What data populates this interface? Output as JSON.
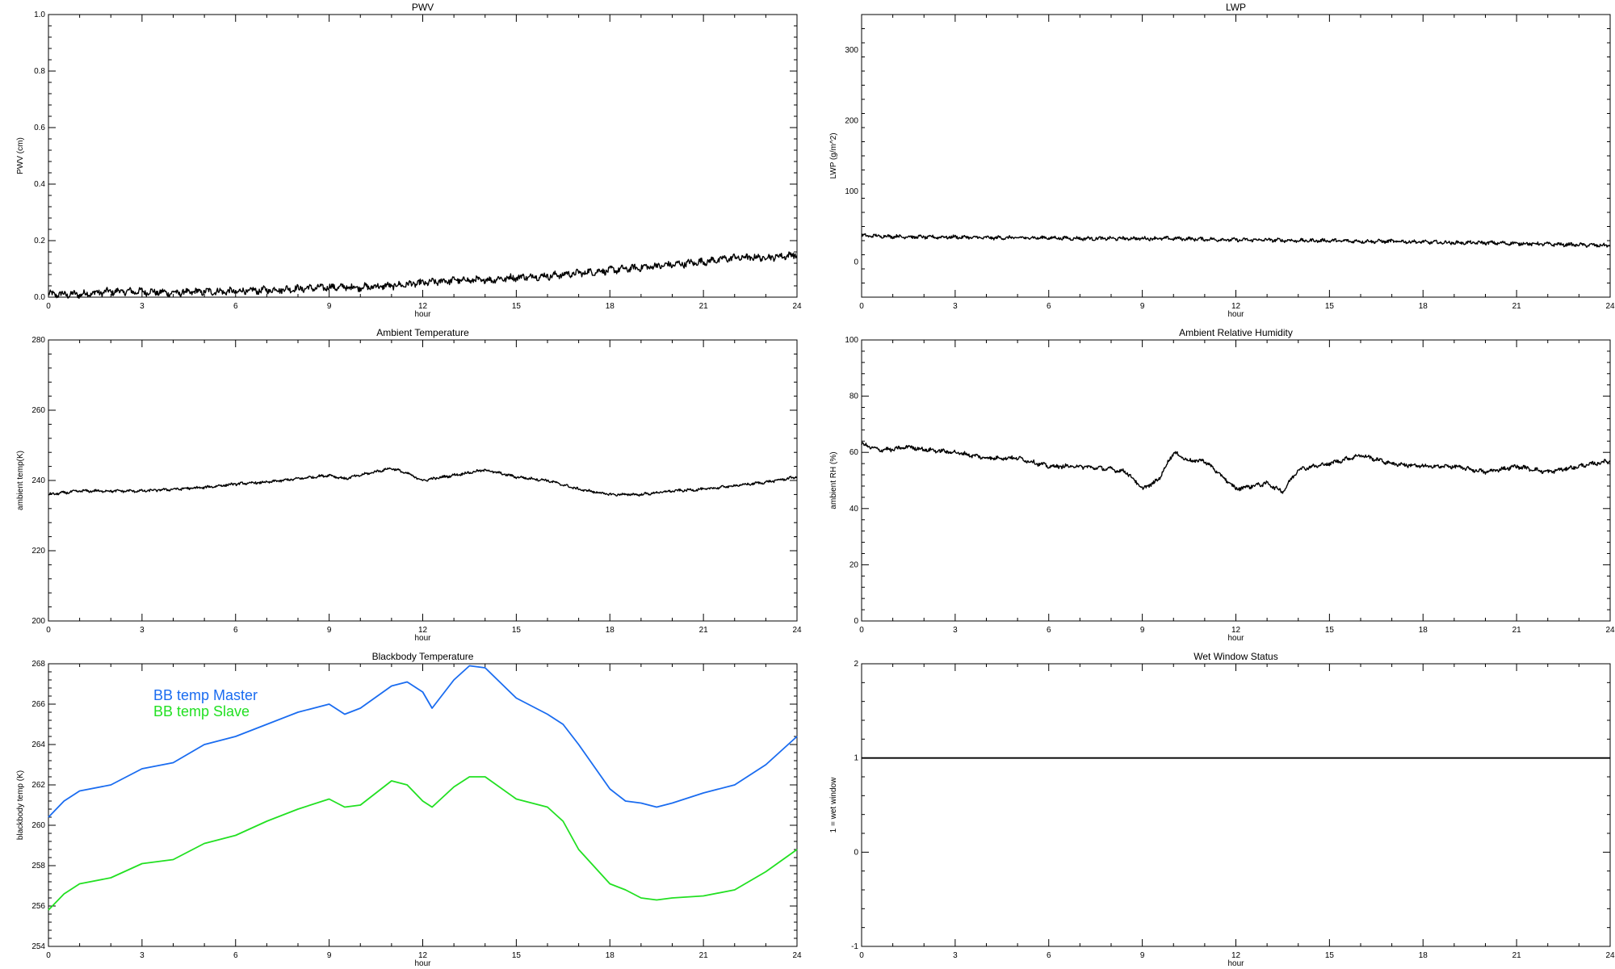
{
  "chart_data": [
    {
      "id": "pwv",
      "type": "line",
      "title": "PWV",
      "xlabel": "hour",
      "ylabel": "PWV (cm)",
      "xlim": [
        0,
        24
      ],
      "ylim": [
        0.0,
        1.0
      ],
      "xticks": [
        "0",
        "3",
        "6",
        "9",
        "12",
        "15",
        "18",
        "21",
        "24"
      ],
      "yticks": [
        "0.0",
        "0.2",
        "0.4",
        "0.6",
        "0.8",
        "1.0"
      ],
      "series": [
        {
          "color": "#000000",
          "noise": 0.01,
          "x": [
            0,
            1,
            2,
            3,
            4,
            5,
            6,
            7,
            8,
            9,
            10,
            11,
            12,
            13,
            14,
            15,
            16,
            17,
            18,
            19,
            20,
            21,
            22,
            23,
            24
          ],
          "y": [
            0.01,
            0.01,
            0.02,
            0.02,
            0.015,
            0.02,
            0.02,
            0.025,
            0.03,
            0.035,
            0.035,
            0.04,
            0.05,
            0.06,
            0.06,
            0.07,
            0.075,
            0.085,
            0.095,
            0.105,
            0.115,
            0.125,
            0.14,
            0.14,
            0.15
          ]
        }
      ]
    },
    {
      "id": "lwp",
      "type": "line",
      "title": "LWP",
      "xlabel": "hour",
      "ylabel": "LWP (g/m^2)",
      "xlim": [
        0,
        24
      ],
      "ylim": [
        -50,
        350
      ],
      "xticks": [
        "0",
        "3",
        "6",
        "9",
        "12",
        "15",
        "18",
        "21",
        "24"
      ],
      "yticks": [
        "0",
        "100",
        "200",
        "300"
      ],
      "series": [
        {
          "color": "#000000",
          "noise": 2.0,
          "x": [
            0,
            1,
            2,
            3,
            4,
            5,
            6,
            7,
            8,
            9,
            10,
            11,
            12,
            13,
            14,
            15,
            16,
            17,
            18,
            19,
            20,
            21,
            22,
            23,
            24
          ],
          "y": [
            37,
            36,
            35,
            35,
            34,
            34,
            34,
            33,
            33,
            33,
            33,
            32,
            31,
            31,
            30,
            30,
            29,
            29,
            28,
            27,
            27,
            26,
            25,
            24,
            23
          ]
        }
      ]
    },
    {
      "id": "ambient-temperature",
      "type": "line",
      "title": "Ambient Temperature",
      "xlabel": "hour",
      "ylabel": "ambient temp(K)",
      "xlim": [
        0,
        24
      ],
      "ylim": [
        200,
        280
      ],
      "xticks": [
        "0",
        "3",
        "6",
        "9",
        "12",
        "15",
        "18",
        "21",
        "24"
      ],
      "yticks": [
        "200",
        "220",
        "240",
        "260",
        "280"
      ],
      "series": [
        {
          "color": "#000000",
          "noise": 0.3,
          "x": [
            0,
            1,
            2,
            3,
            4,
            5,
            6,
            7,
            8,
            9,
            9.5,
            10,
            11,
            11.5,
            12,
            13,
            14,
            15,
            16,
            17,
            18,
            19,
            20,
            21,
            22,
            23,
            24
          ],
          "y": [
            236,
            237,
            237,
            237,
            237.5,
            238,
            239,
            239.5,
            240.5,
            241.5,
            240.5,
            241.5,
            243.5,
            242,
            240,
            241.5,
            243,
            241,
            240,
            237.5,
            236,
            236,
            237,
            237.5,
            238.5,
            239.5,
            241
          ]
        }
      ]
    },
    {
      "id": "ambient-relative-humidity",
      "type": "line",
      "title": "Ambient Relative Humidity",
      "xlabel": "hour",
      "ylabel": "ambient RH (%)",
      "xlim": [
        0,
        24
      ],
      "ylim": [
        0,
        100
      ],
      "xticks": [
        "0",
        "3",
        "6",
        "9",
        "12",
        "15",
        "18",
        "21",
        "24"
      ],
      "yticks": [
        "0",
        "20",
        "40",
        "60",
        "80",
        "100"
      ],
      "series": [
        {
          "color": "#000000",
          "noise": 0.6,
          "x": [
            0,
            0.5,
            1,
            1.5,
            2,
            3,
            4,
            5,
            6,
            7,
            8,
            8.5,
            9,
            9.5,
            10,
            10.5,
            11,
            11.5,
            12,
            13,
            13.5,
            14,
            15,
            16,
            17,
            18,
            19,
            20,
            21,
            22,
            23,
            24
          ],
          "y": [
            63,
            61,
            61,
            62,
            61,
            60,
            58,
            58,
            55,
            55,
            54,
            53,
            47,
            50,
            60,
            57,
            57,
            52,
            47,
            49,
            46,
            54,
            56,
            59,
            56,
            55,
            55,
            53,
            55,
            53,
            55,
            57
          ]
        }
      ]
    },
    {
      "id": "blackbody-temperature",
      "type": "line",
      "title": "Blackbody Temperature",
      "xlabel": "hour",
      "ylabel": "blackbody temp (K)",
      "xlim": [
        0,
        24
      ],
      "ylim": [
        254,
        268
      ],
      "xticks": [
        "0",
        "3",
        "6",
        "9",
        "12",
        "15",
        "18",
        "21",
        "24"
      ],
      "yticks": [
        "254",
        "256",
        "258",
        "260",
        "262",
        "264",
        "266",
        "268"
      ],
      "legend": [
        "BB temp Master",
        "BB temp Slave"
      ],
      "series": [
        {
          "name": "BB temp Master",
          "color": "#1a6cf0",
          "noise": 0,
          "x": [
            0,
            0.5,
            1,
            2,
            3,
            4,
            5,
            6,
            7,
            8,
            9,
            9.5,
            10,
            11,
            11.5,
            12,
            12.3,
            13,
            13.5,
            14,
            15,
            16,
            16.5,
            17,
            18,
            18.5,
            19,
            19.5,
            20,
            21,
            22,
            23,
            24
          ],
          "y": [
            260.4,
            261.2,
            261.7,
            262.0,
            262.8,
            263.1,
            264.0,
            264.4,
            265.0,
            265.6,
            266.0,
            265.5,
            265.8,
            266.9,
            267.1,
            266.6,
            265.8,
            267.2,
            267.9,
            267.8,
            266.3,
            265.5,
            265.0,
            264.0,
            261.8,
            261.2,
            261.1,
            260.9,
            261.1,
            261.6,
            262.0,
            263.0,
            264.4
          ]
        },
        {
          "name": "BB temp Slave",
          "color": "#22e022",
          "noise": 0,
          "x": [
            0,
            0.5,
            1,
            2,
            3,
            4,
            5,
            6,
            7,
            8,
            9,
            9.5,
            10,
            11,
            11.5,
            12,
            12.3,
            13,
            13.5,
            14,
            15,
            16,
            16.5,
            17,
            18,
            18.5,
            19,
            19.5,
            20,
            21,
            22,
            23,
            24
          ],
          "y": [
            255.8,
            256.6,
            257.1,
            257.4,
            258.1,
            258.3,
            259.1,
            259.5,
            260.2,
            260.8,
            261.3,
            260.9,
            261.0,
            262.2,
            262.0,
            261.2,
            260.9,
            261.9,
            262.4,
            262.4,
            261.3,
            260.9,
            260.2,
            258.8,
            257.1,
            256.8,
            256.4,
            256.3,
            256.4,
            256.5,
            256.8,
            257.7,
            258.8
          ]
        }
      ]
    },
    {
      "id": "wet-window-status",
      "type": "line",
      "title": "Wet Window Status",
      "xlabel": "hour",
      "ylabel": "1 = wet window",
      "xlim": [
        0,
        24
      ],
      "ylim": [
        -1,
        2
      ],
      "xticks": [
        "0",
        "3",
        "6",
        "9",
        "12",
        "15",
        "18",
        "21",
        "24"
      ],
      "yticks": [
        "-1",
        "0",
        "1",
        "2"
      ],
      "series": [
        {
          "color": "#000000",
          "noise": 0,
          "x": [
            0,
            24
          ],
          "y": [
            1,
            1
          ]
        }
      ]
    }
  ]
}
